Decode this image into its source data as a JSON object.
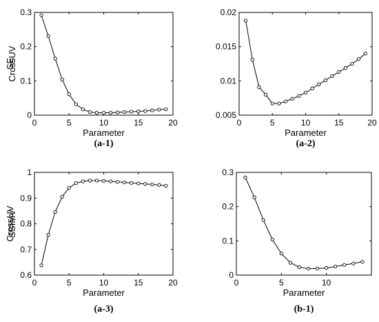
{
  "chart_data": [
    {
      "type": "line",
      "caption": "(a-1)",
      "xlabel": "Parameter",
      "ylabel": "CrossUV",
      "xlim": [
        0,
        20
      ],
      "ylim": [
        0,
        0.3
      ],
      "xticks": [
        0,
        5,
        10,
        15,
        20
      ],
      "yticks": [
        0,
        0.1,
        0.2,
        0.3
      ],
      "xtick_labels": [
        "0",
        "5",
        "10",
        "15",
        "20"
      ],
      "ytick_labels": [
        "0",
        "0.1",
        "0.2",
        "0.3"
      ],
      "x": [
        1,
        2,
        3,
        4,
        5,
        6,
        7,
        8,
        9,
        10,
        11,
        12,
        13,
        14,
        15,
        16,
        17,
        18,
        19
      ],
      "values": [
        0.292,
        0.231,
        0.165,
        0.104,
        0.061,
        0.032,
        0.017,
        0.009,
        0.007,
        0.007,
        0.007,
        0.008,
        0.009,
        0.01,
        0.011,
        0.012,
        0.014,
        0.016,
        0.017
      ]
    },
    {
      "type": "line",
      "caption": "(a-2)",
      "xlabel": "Parameter",
      "ylabel": "SE",
      "xlim": [
        0,
        20
      ],
      "ylim": [
        0.005,
        0.02
      ],
      "xticks": [
        0,
        5,
        10,
        15,
        20
      ],
      "yticks": [
        0.005,
        0.01,
        0.015,
        0.02
      ],
      "xtick_labels": [
        "0",
        "5",
        "10",
        "15",
        "20"
      ],
      "ytick_labels": [
        "0.005",
        "0.01",
        "0.015",
        "0.02"
      ],
      "x": [
        1,
        2,
        3,
        4,
        5,
        6,
        7,
        8,
        9,
        10,
        11,
        12,
        13,
        14,
        15,
        16,
        17,
        18,
        19
      ],
      "values": [
        0.0188,
        0.0131,
        0.0091,
        0.008,
        0.0067,
        0.0067,
        0.007,
        0.0074,
        0.0078,
        0.0083,
        0.0089,
        0.0095,
        0.0101,
        0.0107,
        0.0113,
        0.0119,
        0.0125,
        0.0132,
        0.014
      ]
    },
    {
      "type": "line",
      "caption": "(a-3)",
      "xlabel": "Parameter",
      "ylabel": "SSIMV",
      "xlim": [
        0,
        20
      ],
      "ylim": [
        0.6,
        1.0
      ],
      "xticks": [
        0,
        5,
        10,
        15,
        20
      ],
      "yticks": [
        0.6,
        0.7,
        0.8,
        0.9,
        1.0
      ],
      "xtick_labels": [
        "0",
        "5",
        "10",
        "15",
        "20"
      ],
      "ytick_labels": [
        "0.6",
        "0.7",
        "0.8",
        "0.9",
        "1"
      ],
      "x": [
        1,
        2,
        3,
        4,
        5,
        6,
        7,
        8,
        9,
        10,
        11,
        12,
        13,
        14,
        15,
        16,
        17,
        18,
        19
      ],
      "values": [
        0.638,
        0.757,
        0.846,
        0.905,
        0.94,
        0.958,
        0.965,
        0.968,
        0.968,
        0.967,
        0.965,
        0.963,
        0.961,
        0.959,
        0.957,
        0.955,
        0.953,
        0.951,
        0.948
      ]
    },
    {
      "type": "line",
      "caption": "(b-1)",
      "xlabel": "Parameter",
      "ylabel": "CrossUV",
      "xlim": [
        0,
        15
      ],
      "ylim": [
        0,
        0.3
      ],
      "xticks": [
        0,
        5,
        10
      ],
      "yticks": [
        0,
        0.1,
        0.2,
        0.3
      ],
      "xtick_labels": [
        "0",
        "5",
        "10"
      ],
      "ytick_labels": [
        "0",
        "0.1",
        "0.2",
        "0.3"
      ],
      "x": [
        1,
        2,
        3,
        4,
        5,
        6,
        7,
        8,
        9,
        10,
        11,
        12,
        13,
        14
      ],
      "values": [
        0.285,
        0.227,
        0.161,
        0.104,
        0.063,
        0.036,
        0.023,
        0.019,
        0.019,
        0.021,
        0.025,
        0.03,
        0.034,
        0.039
      ]
    }
  ]
}
